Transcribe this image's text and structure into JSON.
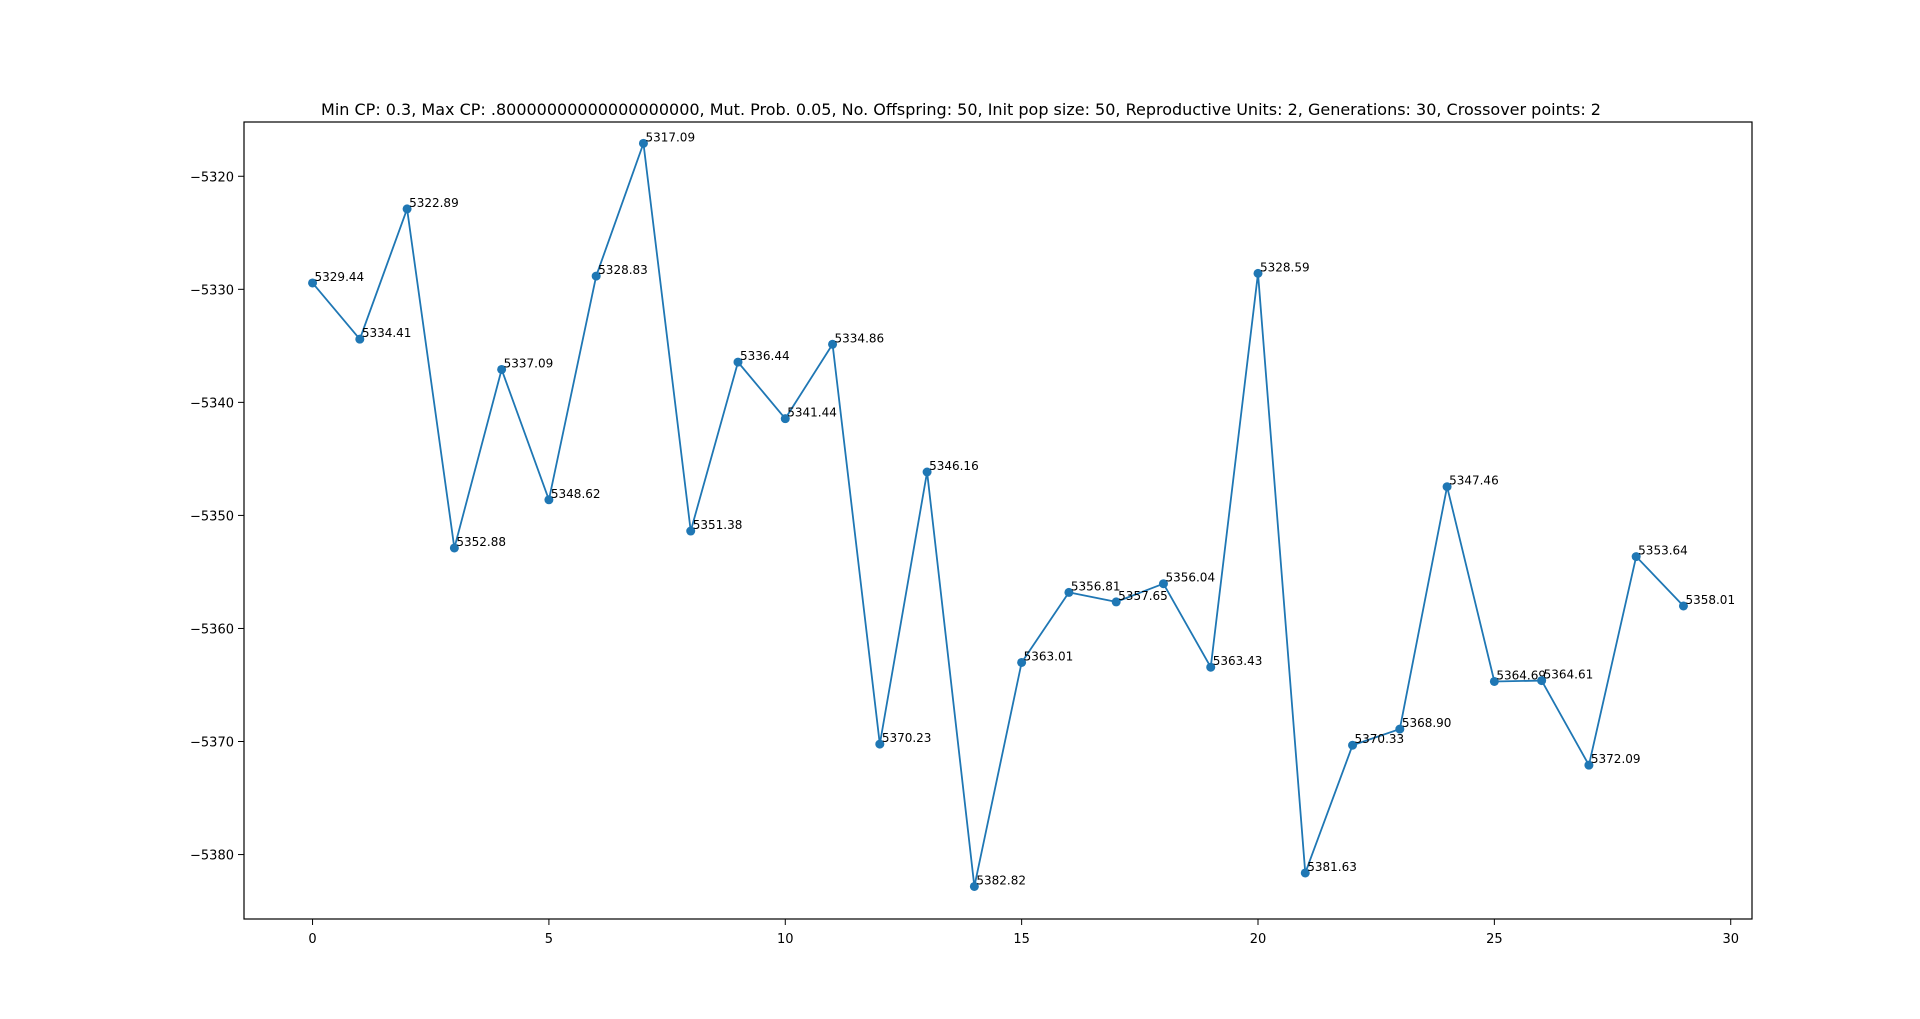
{
  "chart_data": {
    "type": "line",
    "title": "Min CP: 0.3, Max CP: .80000000000000000000, Mut. Prob. 0.05, No. Offspring: 50, Init pop size: 50, Reproductive Units: 2, Generations: 30, Crossover points: 2",
    "xlabel": "",
    "ylabel": "",
    "xlim": [
      -1.45,
      30.45
    ],
    "ylim": [
      -5385.7,
      -5315.2
    ],
    "xticks": [
      0,
      5,
      10,
      15,
      20,
      25,
      30
    ],
    "yticks": [
      -5320,
      -5330,
      -5340,
      -5350,
      -5360,
      -5370,
      -5380
    ],
    "grid": false,
    "legend": false,
    "series_color": "#1f77b4",
    "x": [
      0,
      1,
      2,
      3,
      4,
      5,
      6,
      7,
      8,
      9,
      10,
      11,
      12,
      13,
      14,
      15,
      16,
      17,
      18,
      19,
      20,
      21,
      22,
      23,
      24,
      25,
      26,
      27,
      28,
      29
    ],
    "y": [
      -5329.44,
      -5334.41,
      -5322.89,
      -5352.88,
      -5337.09,
      -5348.62,
      -5328.83,
      -5317.09,
      -5351.38,
      -5336.44,
      -5341.44,
      -5334.86,
      -5370.23,
      -5346.16,
      -5382.82,
      -5363.01,
      -5356.81,
      -5357.65,
      -5356.04,
      -5363.43,
      -5328.59,
      -5381.63,
      -5370.33,
      -5368.9,
      -5347.46,
      -5364.69,
      -5364.61,
      -5372.09,
      -5353.64,
      -5358.01
    ],
    "point_labels": [
      "5329.44",
      "5334.41",
      "5322.89",
      "5352.88",
      "5337.09",
      "5348.62",
      "5328.83",
      "5317.09",
      "5351.38",
      "5336.44",
      "5341.44",
      "5334.86",
      "5370.23",
      "5346.16",
      "5382.82",
      "5363.01",
      "5356.81",
      "5357.65",
      "5356.04",
      "5363.43",
      "5328.59",
      "5381.63",
      "5370.33",
      "5368.90",
      "5347.46",
      "5364.69",
      "5364.61",
      "5372.09",
      "5353.64",
      "5358.01"
    ]
  }
}
